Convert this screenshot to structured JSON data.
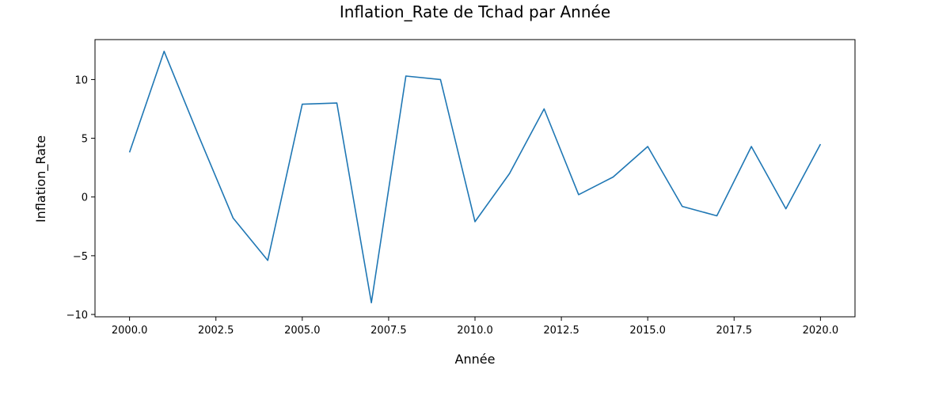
{
  "chart_data": {
    "type": "line",
    "title": "Inflation_Rate de Tchad par Année",
    "xlabel": "Année",
    "ylabel": "Inflation_Rate",
    "xlim": [
      1999.0,
      2021.0
    ],
    "ylim": [
      -10.2,
      13.4
    ],
    "xticks": [
      2000.0,
      2002.5,
      2005.0,
      2007.5,
      2010.0,
      2012.5,
      2015.0,
      2017.5,
      2020.0
    ],
    "xtick_labels": [
      "2000.0",
      "2002.5",
      "2005.0",
      "2007.5",
      "2010.0",
      "2012.5",
      "2015.0",
      "2017.5",
      "2020.0"
    ],
    "yticks": [
      -10,
      -5,
      0,
      5,
      10
    ],
    "ytick_labels": [
      "−10",
      "−5",
      "0",
      "5",
      "10"
    ],
    "grid": false,
    "line_color": "#1f77b4",
    "series": [
      {
        "x": [
          2000,
          2001,
          2002,
          2003,
          2004,
          2005,
          2006,
          2007,
          2008,
          2009,
          2010,
          2011,
          2012,
          2013,
          2014,
          2015,
          2016,
          2017,
          2018,
          2019,
          2020
        ],
        "values": [
          3.8,
          12.4,
          5.2,
          -1.8,
          -5.4,
          7.9,
          8.0,
          -9.0,
          10.3,
          10.0,
          -2.1,
          2.0,
          7.5,
          0.2,
          1.7,
          4.3,
          -0.8,
          -1.6,
          4.3,
          -1.0,
          4.5
        ]
      }
    ]
  }
}
